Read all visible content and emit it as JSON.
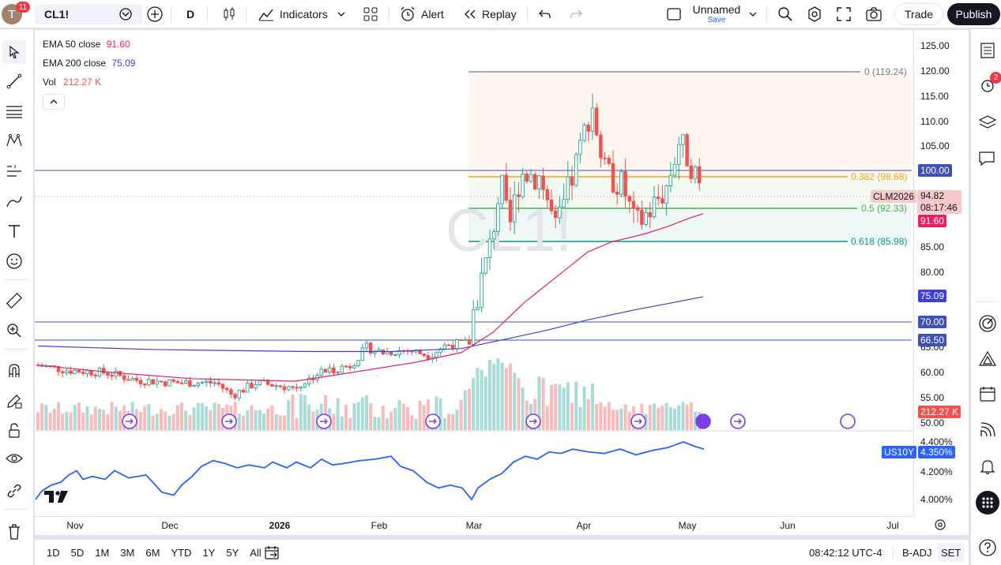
{
  "topbar": {
    "avatar_letter": "T",
    "notif_count": "11",
    "symbol": "CL1!",
    "interval": "D",
    "indicators_label": "Indicators",
    "alert_label": "Alert",
    "replay_label": "Replay",
    "layout_name": "Unnamed",
    "layout_status": "Save",
    "trade_label": "Trade",
    "publish_label": "Publish"
  },
  "legend": {
    "ema50_label": "EMA 50 close",
    "ema50_value": "91.60",
    "ema200_label": "EMA 200 close",
    "ema200_value": "75.09",
    "vol_label": "Vol",
    "vol_value": "212.27 K"
  },
  "price_axis": [
    "125.00",
    "120.00",
    "115.00",
    "110.00",
    "105.00",
    "100.00",
    "95.00",
    "90.00",
    "85.00",
    "80.00",
    "75.00",
    "70.00",
    "65.00",
    "60.00",
    "55.00",
    "50.00"
  ],
  "lower_axis": [
    "4.400%",
    "4.350%",
    "4.200%",
    "4.000%"
  ],
  "time_axis": [
    "Nov",
    "Dec",
    "2026",
    "Feb",
    "Mar",
    "Apr",
    "May",
    "Jun",
    "Jul"
  ],
  "watermark": "CL1!",
  "fib": {
    "l0": "0 (119.24)",
    "l382": "0.382 (98.68)",
    "l5": "0.5 (92.33)",
    "l618": "0.618 (85.98)"
  },
  "tags": {
    "h100": "100.00",
    "sym": "CLM2026",
    "price": "94.82",
    "countdown": "08:17:46",
    "ema50": "91.60",
    "ema200": "75.09",
    "h70": "70.00",
    "h665": "66.50",
    "vol": "212.27 K",
    "us10y_sym": "US10Y",
    "us10y_val": "4.350%"
  },
  "bottom": {
    "ranges": [
      "1D",
      "5D",
      "1M",
      "3M",
      "6M",
      "YTD",
      "1Y",
      "5Y",
      "All"
    ],
    "clock": "08:42:12 UTC-4",
    "badj": "B-ADJ",
    "set": "SET"
  },
  "alerts_badge": "2",
  "colors": {
    "up": "#26a69a",
    "down": "#ef5350",
    "ema50": "#e91e63",
    "ema200": "#3f3fd8",
    "fib382": "#f7a21b",
    "fib5": "#4caf50",
    "fib618": "#089981",
    "hline": "#3f51b5",
    "us10y": "#2962ff"
  },
  "chart_data": {
    "type": "candlestick",
    "series": [
      {
        "name": "EMA 50 close",
        "last": 91.6
      },
      {
        "name": "EMA 200 close",
        "last": 75.09
      },
      {
        "name": "US10Y",
        "last": 4.35
      }
    ],
    "ylim": [
      50,
      125
    ],
    "horizontal_lines": [
      100.0,
      70.0,
      66.5
    ],
    "fib_levels": [
      119.24,
      98.68,
      92.33,
      85.98
    ],
    "last_price": 94.82
  }
}
